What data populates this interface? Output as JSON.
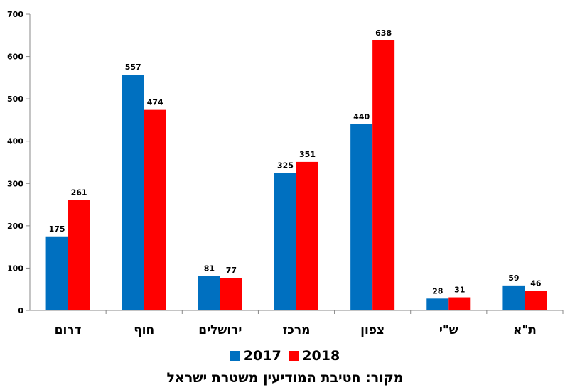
{
  "chart_data": {
    "type": "bar",
    "categories": [
      "דרום",
      "חוף",
      "ירושלים",
      "מרכז",
      "צפון",
      "ש\"י",
      "ת\"א"
    ],
    "series": [
      {
        "name": "2017",
        "color": "#0070c0",
        "values": [
          175,
          557,
          81,
          325,
          440,
          28,
          59
        ]
      },
      {
        "name": "2018",
        "color": "#ff0000",
        "values": [
          261,
          474,
          77,
          351,
          638,
          31,
          46
        ]
      }
    ],
    "ylim": [
      0,
      700
    ],
    "yticks": [
      0,
      100,
      200,
      300,
      400,
      500,
      600,
      700
    ],
    "legend_position": "bottom",
    "grid": false,
    "source": "מקור: חטיבת המודיעין משטרת ישראל"
  }
}
